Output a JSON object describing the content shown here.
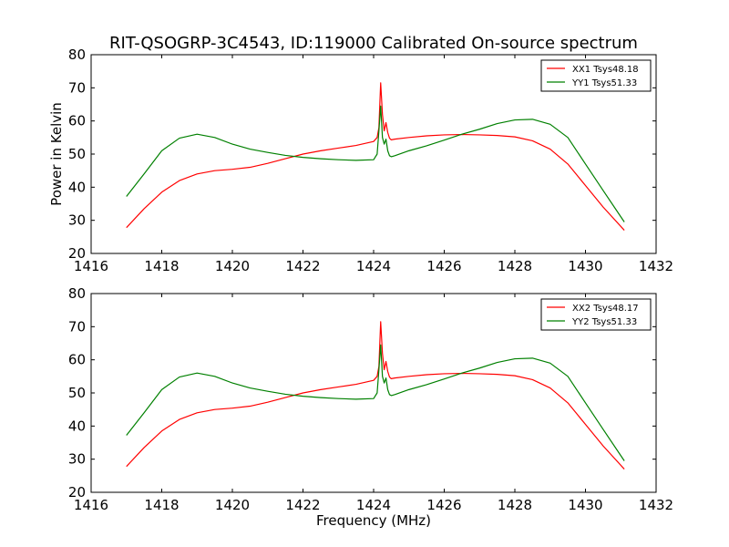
{
  "figure": {
    "title": "RIT-QSOGRP-3C4543, ID:119000 Calibrated On-source spectrum"
  },
  "chart_data": [
    {
      "type": "line",
      "title": "RIT-QSOGRP-3C4543, ID:119000 Calibrated On-source spectrum",
      "xlabel": "",
      "ylabel": "Power in Kelvin",
      "xlim": [
        1416,
        1432
      ],
      "ylim": [
        20,
        80
      ],
      "xticks": [
        1416,
        1418,
        1420,
        1422,
        1424,
        1426,
        1428,
        1430,
        1432
      ],
      "yticks": [
        20,
        30,
        40,
        50,
        60,
        70,
        80
      ],
      "grid": false,
      "legend": "top-right",
      "series": [
        {
          "name": "XX1 Tsys48.18",
          "color": "#ff0000",
          "x": [
            1417.0,
            1417.5,
            1418.0,
            1418.5,
            1419.0,
            1419.5,
            1420.0,
            1420.5,
            1421.0,
            1421.5,
            1422.0,
            1422.5,
            1423.0,
            1423.5,
            1424.0,
            1424.1,
            1424.15,
            1424.2,
            1424.25,
            1424.3,
            1424.35,
            1424.4,
            1424.45,
            1424.5,
            1424.6,
            1425.0,
            1425.5,
            1426.0,
            1426.5,
            1427.0,
            1427.5,
            1428.0,
            1428.5,
            1429.0,
            1429.5,
            1430.0,
            1430.5,
            1431.1
          ],
          "y": [
            27.8,
            33.5,
            38.5,
            42.0,
            44.0,
            45.0,
            45.4,
            46.0,
            47.2,
            48.6,
            50.0,
            51.0,
            51.8,
            52.6,
            53.8,
            55.0,
            58.0,
            71.5,
            62.0,
            57.0,
            59.5,
            56.5,
            54.8,
            54.3,
            54.5,
            55.0,
            55.5,
            55.8,
            55.9,
            55.8,
            55.6,
            55.2,
            54.0,
            51.5,
            47.0,
            40.5,
            34.0,
            27.0
          ]
        },
        {
          "name": "YY1 Tsys51.33",
          "color": "#008000",
          "x": [
            1417.0,
            1417.5,
            1418.0,
            1418.5,
            1419.0,
            1419.5,
            1420.0,
            1420.5,
            1421.0,
            1421.5,
            1422.0,
            1422.5,
            1423.0,
            1423.5,
            1424.0,
            1424.1,
            1424.15,
            1424.2,
            1424.25,
            1424.3,
            1424.35,
            1424.4,
            1424.45,
            1424.5,
            1424.6,
            1425.0,
            1425.5,
            1426.0,
            1426.5,
            1427.0,
            1427.5,
            1428.0,
            1428.5,
            1429.0,
            1429.5,
            1430.0,
            1430.5,
            1431.1
          ],
          "y": [
            37.2,
            44.0,
            51.0,
            54.8,
            56.0,
            55.0,
            53.0,
            51.5,
            50.5,
            49.6,
            49.0,
            48.6,
            48.3,
            48.1,
            48.3,
            50.0,
            57.0,
            64.5,
            55.0,
            53.0,
            54.5,
            51.0,
            49.5,
            49.2,
            49.5,
            51.0,
            52.5,
            54.2,
            56.0,
            57.5,
            59.2,
            60.3,
            60.5,
            59.0,
            55.0,
            47.0,
            39.0,
            29.5
          ]
        }
      ]
    },
    {
      "type": "line",
      "title": "",
      "xlabel": "Frequency (MHz)",
      "ylabel": "",
      "xlim": [
        1416,
        1432
      ],
      "ylim": [
        20,
        80
      ],
      "xticks": [
        1416,
        1418,
        1420,
        1422,
        1424,
        1426,
        1428,
        1430,
        1432
      ],
      "yticks": [
        20,
        30,
        40,
        50,
        60,
        70,
        80
      ],
      "grid": false,
      "legend": "top-right",
      "series": [
        {
          "name": "XX2 Tsys48.17",
          "color": "#ff0000",
          "x": [
            1417.0,
            1417.5,
            1418.0,
            1418.5,
            1419.0,
            1419.5,
            1420.0,
            1420.5,
            1421.0,
            1421.5,
            1422.0,
            1422.5,
            1423.0,
            1423.5,
            1424.0,
            1424.1,
            1424.15,
            1424.2,
            1424.25,
            1424.3,
            1424.35,
            1424.4,
            1424.45,
            1424.5,
            1424.6,
            1425.0,
            1425.5,
            1426.0,
            1426.5,
            1427.0,
            1427.5,
            1428.0,
            1428.5,
            1429.0,
            1429.5,
            1430.0,
            1430.5,
            1431.1
          ],
          "y": [
            27.8,
            33.5,
            38.5,
            42.0,
            44.0,
            45.0,
            45.4,
            46.0,
            47.2,
            48.6,
            50.0,
            51.0,
            51.8,
            52.6,
            53.8,
            55.0,
            58.0,
            71.5,
            62.0,
            57.0,
            59.5,
            56.5,
            54.8,
            54.3,
            54.5,
            55.0,
            55.5,
            55.8,
            55.9,
            55.8,
            55.6,
            55.2,
            54.0,
            51.5,
            47.0,
            40.5,
            34.0,
            27.0
          ]
        },
        {
          "name": "YY2 Tsys51.33",
          "color": "#008000",
          "x": [
            1417.0,
            1417.5,
            1418.0,
            1418.5,
            1419.0,
            1419.5,
            1420.0,
            1420.5,
            1421.0,
            1421.5,
            1422.0,
            1422.5,
            1423.0,
            1423.5,
            1424.0,
            1424.1,
            1424.15,
            1424.2,
            1424.25,
            1424.3,
            1424.35,
            1424.4,
            1424.45,
            1424.5,
            1424.6,
            1425.0,
            1425.5,
            1426.0,
            1426.5,
            1427.0,
            1427.5,
            1428.0,
            1428.5,
            1429.0,
            1429.5,
            1430.0,
            1430.5,
            1431.1
          ],
          "y": [
            37.2,
            44.0,
            51.0,
            54.8,
            56.0,
            55.0,
            53.0,
            51.5,
            50.5,
            49.6,
            49.0,
            48.6,
            48.3,
            48.1,
            48.3,
            50.0,
            57.0,
            64.5,
            55.0,
            53.0,
            54.5,
            51.0,
            49.5,
            49.2,
            49.5,
            51.0,
            52.5,
            54.2,
            56.0,
            57.5,
            59.2,
            60.3,
            60.5,
            59.0,
            55.0,
            47.0,
            39.0,
            29.5
          ]
        }
      ]
    }
  ]
}
